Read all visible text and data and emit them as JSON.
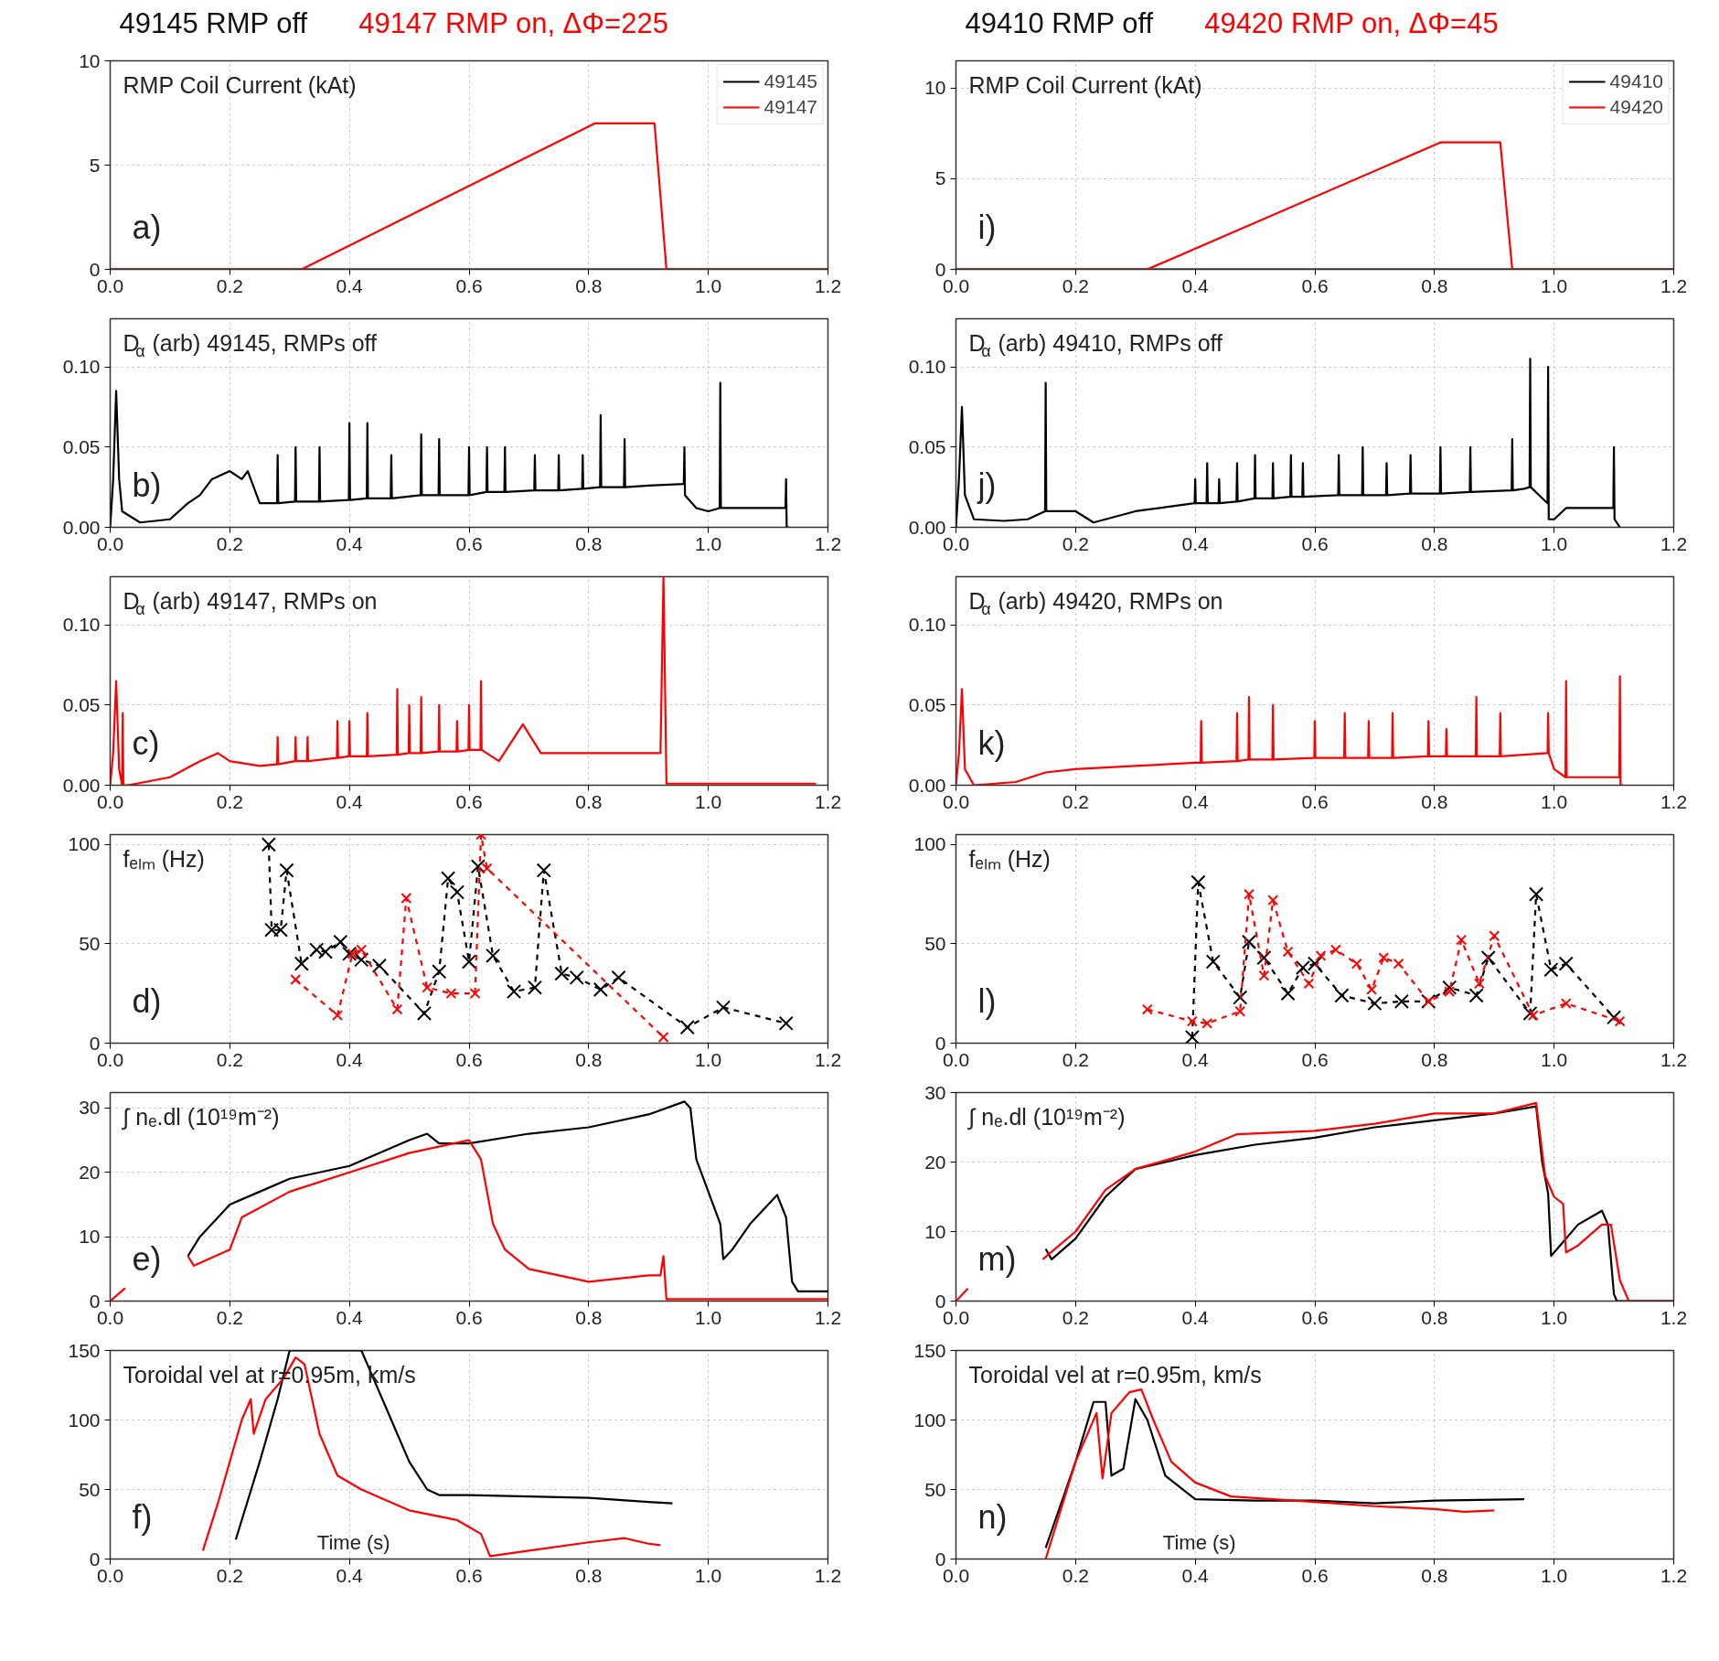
{
  "chart_data": [
    {
      "type": "line",
      "title": "49145 RMP off",
      "subtitle": "49147 RMP on, ΔΦ=225",
      "annotations": [
        "RMP Coil Current (kAt)",
        "a)"
      ],
      "xlim": [
        0,
        1.2
      ],
      "xticks": [
        {
          "value": 0,
          "label": "0.0"
        },
        {
          "value": 0.2,
          "label": "0.2"
        },
        {
          "value": 0.4,
          "label": "0.4"
        },
        {
          "value": 0.6,
          "label": "0.6"
        },
        {
          "value": 0.8,
          "label": "0.8"
        },
        {
          "value": 1.0,
          "label": "1.0"
        },
        {
          "value": 1.2,
          "label": "1.2"
        }
      ],
      "ylim": [
        0,
        10
      ],
      "yticks": [
        0,
        5,
        10
      ],
      "grid": true,
      "legend": "top right",
      "series": [
        {
          "name": "49145",
          "color": "#000000",
          "x": [
            0,
            1.2
          ],
          "values": [
            0,
            0
          ]
        },
        {
          "name": "49147",
          "color": "#ff0000",
          "x": [
            0,
            0.32,
            0.81,
            0.91,
            0.93,
            1.2
          ],
          "values": [
            0,
            0,
            7,
            7,
            0,
            0
          ]
        }
      ]
    },
    {
      "type": "line",
      "title": "49410 RMP off",
      "subtitle": "49420 RMP on, ΔΦ=45",
      "annotations": [
        "RMP Coil Current (kAt)",
        "i)"
      ],
      "xlim": [
        0,
        1.2
      ],
      "xticks": [
        {
          "value": 0,
          "label": "0.0"
        },
        {
          "value": 0.2,
          "label": "0.2"
        },
        {
          "value": 0.4,
          "label": "0.4"
        },
        {
          "value": 0.6,
          "label": "0.6"
        },
        {
          "value": 0.8,
          "label": "0.8"
        },
        {
          "value": 1.0,
          "label": "1.0"
        },
        {
          "value": 1.2,
          "label": "1.2"
        }
      ],
      "ylim": [
        0,
        11.5
      ],
      "yticks": [
        0,
        5,
        10
      ],
      "grid": true,
      "legend": "top right",
      "series": [
        {
          "name": "49410",
          "color": "#000000",
          "x": [
            0,
            1.2
          ],
          "values": [
            0,
            0
          ]
        },
        {
          "name": "49420",
          "color": "#ff0000",
          "x": [
            0,
            0.32,
            0.81,
            0.91,
            0.93,
            1.2
          ],
          "values": [
            0,
            0,
            7,
            7,
            0,
            0
          ]
        }
      ]
    },
    {
      "type": "line",
      "annotations": [
        "D$_{α}$ (arb) 49145, RMPs off",
        "b)"
      ],
      "xlim": [
        0,
        1.2
      ],
      "xticks": [
        {
          "value": 0,
          "label": "0.0"
        },
        {
          "value": 0.2,
          "label": "0.2"
        },
        {
          "value": 0.4,
          "label": "0.4"
        },
        {
          "value": 0.6,
          "label": "0.6"
        },
        {
          "value": 0.8,
          "label": "0.8"
        },
        {
          "value": 1.0,
          "label": "1.0"
        },
        {
          "value": 1.2,
          "label": "1.2"
        }
      ],
      "ylim": [
        0,
        0.13
      ],
      "yticks": [
        {
          "value": 0,
          "label": "0.00"
        },
        {
          "value": 0.05,
          "label": "0.05"
        },
        {
          "value": 0.1,
          "label": "0.10"
        }
      ],
      "grid": true,
      "series": [
        {
          "color": "#000000",
          "x": [
            0,
            0.005,
            0.01,
            0.015,
            0.02,
            0.05,
            0.1,
            0.13,
            0.15,
            0.17,
            0.2,
            0.22,
            0.23,
            0.25,
            0.279,
            0.28,
            0.281,
            0.309,
            0.31,
            0.311,
            0.349,
            0.35,
            0.351,
            0.399,
            0.4,
            0.401,
            0.429,
            0.43,
            0.431,
            0.469,
            0.47,
            0.471,
            0.519,
            0.52,
            0.521,
            0.549,
            0.55,
            0.551,
            0.599,
            0.6,
            0.601,
            0.629,
            0.63,
            0.631,
            0.659,
            0.66,
            0.661,
            0.709,
            0.71,
            0.711,
            0.749,
            0.75,
            0.751,
            0.789,
            0.79,
            0.791,
            0.819,
            0.82,
            0.821,
            0.859,
            0.86,
            0.861,
            0.9,
            0.959,
            0.96,
            0.961,
            0.98,
            1.0,
            1.019,
            1.02,
            1.021,
            1.05,
            1.1,
            1.12,
            1.129,
            1.13,
            1.131,
            1.135
          ],
          "values": [
            0,
            0.03,
            0.085,
            0.03,
            0.01,
            0.003,
            0.005,
            0.015,
            0.02,
            0.03,
            0.035,
            0.03,
            0.035,
            0.015,
            0.015,
            0.045,
            0.015,
            0.016,
            0.05,
            0.016,
            0.016,
            0.05,
            0.016,
            0.017,
            0.065,
            0.017,
            0.018,
            0.065,
            0.018,
            0.018,
            0.045,
            0.018,
            0.02,
            0.058,
            0.02,
            0.02,
            0.055,
            0.02,
            0.02,
            0.05,
            0.02,
            0.022,
            0.05,
            0.022,
            0.022,
            0.05,
            0.022,
            0.023,
            0.045,
            0.023,
            0.023,
            0.045,
            0.023,
            0.024,
            0.045,
            0.024,
            0.025,
            0.07,
            0.025,
            0.025,
            0.055,
            0.025,
            0.026,
            0.027,
            0.05,
            0.02,
            0.012,
            0.01,
            0.012,
            0.09,
            0.012,
            0.012,
            0.012,
            0.012,
            0.012,
            0.03,
            0.0,
            0
          ]
        }
      ]
    },
    {
      "type": "line",
      "annotations": [
        "D$_{α}$ (arb) 49410, RMPs off",
        "j)"
      ],
      "xlim": [
        0,
        1.2
      ],
      "xticks": [
        {
          "value": 0,
          "label": "0.0"
        },
        {
          "value": 0.2,
          "label": "0.2"
        },
        {
          "value": 0.4,
          "label": "0.4"
        },
        {
          "value": 0.6,
          "label": "0.6"
        },
        {
          "value": 0.8,
          "label": "0.8"
        },
        {
          "value": 1.0,
          "label": "1.0"
        },
        {
          "value": 1.2,
          "label": "1.2"
        }
      ],
      "ylim": [
        0,
        0.13
      ],
      "yticks": [
        {
          "value": 0,
          "label": "0.00"
        },
        {
          "value": 0.05,
          "label": "0.05"
        },
        {
          "value": 0.1,
          "label": "0.10"
        }
      ],
      "grid": true,
      "series": [
        {
          "color": "#000000",
          "x": [
            0,
            0.005,
            0.01,
            0.015,
            0.03,
            0.08,
            0.12,
            0.149,
            0.15,
            0.151,
            0.2,
            0.23,
            0.3,
            0.399,
            0.4,
            0.401,
            0.419,
            0.42,
            0.421,
            0.439,
            0.44,
            0.441,
            0.469,
            0.47,
            0.471,
            0.499,
            0.5,
            0.501,
            0.529,
            0.53,
            0.531,
            0.559,
            0.56,
            0.561,
            0.579,
            0.58,
            0.581,
            0.639,
            0.64,
            0.641,
            0.679,
            0.68,
            0.681,
            0.719,
            0.72,
            0.721,
            0.759,
            0.76,
            0.761,
            0.809,
            0.81,
            0.811,
            0.859,
            0.86,
            0.861,
            0.929,
            0.93,
            0.931,
            0.95,
            0.959,
            0.96,
            0.961,
            0.975,
            0.989,
            0.99,
            0.991,
            1.0,
            1.02,
            1.08,
            1.099,
            1.1,
            1.101,
            1.11
          ],
          "values": [
            0,
            0.03,
            0.075,
            0.02,
            0.005,
            0.004,
            0.005,
            0.01,
            0.09,
            0.01,
            0.01,
            0.003,
            0.01,
            0.015,
            0.03,
            0.015,
            0.015,
            0.04,
            0.015,
            0.015,
            0.03,
            0.015,
            0.016,
            0.04,
            0.016,
            0.018,
            0.045,
            0.018,
            0.018,
            0.04,
            0.018,
            0.019,
            0.045,
            0.019,
            0.019,
            0.04,
            0.019,
            0.02,
            0.045,
            0.02,
            0.02,
            0.05,
            0.02,
            0.02,
            0.04,
            0.02,
            0.021,
            0.045,
            0.021,
            0.021,
            0.05,
            0.021,
            0.022,
            0.05,
            0.022,
            0.023,
            0.055,
            0.023,
            0.024,
            0.025,
            0.105,
            0.025,
            0.02,
            0.015,
            0.1,
            0.005,
            0.005,
            0.012,
            0.012,
            0.012,
            0.05,
            0.005,
            0
          ]
        }
      ]
    },
    {
      "type": "line",
      "annotations": [
        "D$_{α}$ (arb) 49147, RMPs on",
        "c)"
      ],
      "xlim": [
        0,
        1.2
      ],
      "xticks": [
        {
          "value": 0,
          "label": "0.0"
        },
        {
          "value": 0.2,
          "label": "0.2"
        },
        {
          "value": 0.4,
          "label": "0.4"
        },
        {
          "value": 0.6,
          "label": "0.6"
        },
        {
          "value": 0.8,
          "label": "0.8"
        },
        {
          "value": 1.0,
          "label": "1.0"
        },
        {
          "value": 1.2,
          "label": "1.2"
        }
      ],
      "ylim": [
        0,
        0.13
      ],
      "yticks": [
        {
          "value": 0,
          "label": "0.00"
        },
        {
          "value": 0.05,
          "label": "0.05"
        },
        {
          "value": 0.1,
          "label": "0.10"
        }
      ],
      "grid": true,
      "series": [
        {
          "color": "#ff0000",
          "x": [
            0,
            0.005,
            0.01,
            0.015,
            0.02,
            0.021,
            0.022,
            0.03,
            0.1,
            0.15,
            0.18,
            0.2,
            0.25,
            0.279,
            0.28,
            0.281,
            0.309,
            0.31,
            0.311,
            0.329,
            0.33,
            0.331,
            0.379,
            0.38,
            0.381,
            0.399,
            0.4,
            0.401,
            0.429,
            0.43,
            0.431,
            0.479,
            0.48,
            0.481,
            0.499,
            0.5,
            0.501,
            0.519,
            0.52,
            0.521,
            0.549,
            0.55,
            0.551,
            0.579,
            0.58,
            0.581,
            0.599,
            0.6,
            0.601,
            0.619,
            0.62,
            0.621,
            0.65,
            0.69,
            0.72,
            0.8,
            0.92,
            0.925,
            0.93,
            1.18
          ],
          "values": [
            0,
            0.02,
            0.065,
            0.01,
            0.0,
            0.045,
            0.0,
            0.0,
            0.005,
            0.015,
            0.02,
            0.015,
            0.012,
            0.013,
            0.03,
            0.013,
            0.015,
            0.03,
            0.015,
            0.015,
            0.03,
            0.015,
            0.017,
            0.04,
            0.017,
            0.018,
            0.04,
            0.018,
            0.018,
            0.045,
            0.018,
            0.019,
            0.06,
            0.019,
            0.02,
            0.05,
            0.02,
            0.02,
            0.055,
            0.02,
            0.021,
            0.05,
            0.021,
            0.021,
            0.04,
            0.021,
            0.022,
            0.05,
            0.022,
            0.022,
            0.065,
            0.022,
            0.015,
            0.038,
            0.02,
            0.02,
            0.02,
            0.13,
            0.001,
            0.001
          ]
        }
      ]
    },
    {
      "type": "line",
      "annotations": [
        "D$_{α}$ (arb) 49420, RMPs on",
        "k)"
      ],
      "xlim": [
        0,
        1.2
      ],
      "xticks": [
        {
          "value": 0,
          "label": "0.0"
        },
        {
          "value": 0.2,
          "label": "0.2"
        },
        {
          "value": 0.4,
          "label": "0.4"
        },
        {
          "value": 0.6,
          "label": "0.6"
        },
        {
          "value": 0.8,
          "label": "0.8"
        },
        {
          "value": 1.0,
          "label": "1.0"
        },
        {
          "value": 1.2,
          "label": "1.2"
        }
      ],
      "ylim": [
        0,
        0.13
      ],
      "yticks": [
        {
          "value": 0,
          "label": "0.00"
        },
        {
          "value": 0.05,
          "label": "0.05"
        },
        {
          "value": 0.1,
          "label": "0.10"
        }
      ],
      "grid": true,
      "series": [
        {
          "color": "#ff0000",
          "x": [
            0,
            0.005,
            0.01,
            0.015,
            0.03,
            0.1,
            0.15,
            0.2,
            0.3,
            0.4,
            0.409,
            0.41,
            0.411,
            0.469,
            0.47,
            0.471,
            0.489,
            0.49,
            0.491,
            0.529,
            0.53,
            0.531,
            0.599,
            0.6,
            0.601,
            0.649,
            0.65,
            0.651,
            0.689,
            0.69,
            0.691,
            0.729,
            0.73,
            0.731,
            0.789,
            0.79,
            0.791,
            0.819,
            0.82,
            0.821,
            0.869,
            0.87,
            0.871,
            0.909,
            0.91,
            0.911,
            0.989,
            0.99,
            0.991,
            1.0,
            1.019,
            1.02,
            1.021,
            1.1,
            1.109,
            1.11,
            1.111,
            1.115
          ],
          "values": [
            0,
            0.02,
            0.06,
            0.01,
            0.0,
            0.002,
            0.008,
            0.01,
            0.012,
            0.014,
            0.014,
            0.04,
            0.014,
            0.015,
            0.045,
            0.015,
            0.016,
            0.055,
            0.016,
            0.016,
            0.05,
            0.016,
            0.017,
            0.04,
            0.017,
            0.017,
            0.045,
            0.017,
            0.017,
            0.04,
            0.017,
            0.017,
            0.045,
            0.017,
            0.018,
            0.04,
            0.018,
            0.018,
            0.035,
            0.018,
            0.018,
            0.055,
            0.018,
            0.018,
            0.045,
            0.018,
            0.02,
            0.045,
            0.02,
            0.01,
            0.005,
            0.065,
            0.005,
            0.005,
            0.005,
            0.068,
            0.0,
            0
          ]
        }
      ]
    },
    {
      "type": "line",
      "annotations": [
        "fₑₗₘ (Hz)",
        "d)"
      ],
      "xlim": [
        0,
        1.2
      ],
      "xticks": [
        {
          "value": 0,
          "label": "0.0"
        },
        {
          "value": 0.2,
          "label": "0.2"
        },
        {
          "value": 0.4,
          "label": "0.4"
        },
        {
          "value": 0.6,
          "label": "0.6"
        },
        {
          "value": 0.8,
          "label": "0.8"
        },
        {
          "value": 1.0,
          "label": "1.0"
        },
        {
          "value": 1.2,
          "label": "1.2"
        }
      ],
      "ylim": [
        0,
        105
      ],
      "yticks": [
        0,
        50,
        100
      ],
      "grid": true,
      "marker": "cross",
      "line_style": "dashed",
      "series": [
        {
          "color": "#000000",
          "x": [
            0.265,
            0.27,
            0.285,
            0.295,
            0.32,
            0.345,
            0.36,
            0.385,
            0.4,
            0.42,
            0.45,
            0.525,
            0.55,
            0.565,
            0.58,
            0.6,
            0.615,
            0.64,
            0.675,
            0.71,
            0.725,
            0.755,
            0.78,
            0.82,
            0.85,
            0.965,
            1.025,
            1.13
          ],
          "values": [
            100,
            57,
            57,
            87,
            40,
            47,
            46,
            51,
            45,
            42,
            39,
            15,
            36,
            83,
            76,
            41,
            89,
            44,
            26,
            28,
            87,
            35,
            33,
            27,
            33,
            8,
            18,
            10
          ]
        },
        {
          "color": "#ff0000",
          "x": [
            0.31,
            0.38,
            0.405,
            0.42,
            0.48,
            0.495,
            0.53,
            0.57,
            0.61,
            0.62,
            0.63,
            0.925
          ],
          "values": [
            32,
            14,
            45,
            47,
            17,
            73,
            28,
            25,
            25,
            105,
            88,
            3
          ]
        }
      ]
    },
    {
      "type": "line",
      "annotations": [
        "fₑₗₘ (Hz)",
        "l)"
      ],
      "xlim": [
        0,
        1.2
      ],
      "xticks": [
        {
          "value": 0,
          "label": "0.0"
        },
        {
          "value": 0.2,
          "label": "0.2"
        },
        {
          "value": 0.4,
          "label": "0.4"
        },
        {
          "value": 0.6,
          "label": "0.6"
        },
        {
          "value": 0.8,
          "label": "0.8"
        },
        {
          "value": 1.0,
          "label": "1.0"
        },
        {
          "value": 1.2,
          "label": "1.2"
        }
      ],
      "ylim": [
        0,
        105
      ],
      "yticks": [
        0,
        50,
        100
      ],
      "grid": true,
      "marker": "cross",
      "line_style": "dashed",
      "series": [
        {
          "color": "#000000",
          "x": [
            0.395,
            0.405,
            0.43,
            0.475,
            0.49,
            0.515,
            0.555,
            0.58,
            0.6,
            0.645,
            0.7,
            0.745,
            0.79,
            0.825,
            0.87,
            0.89,
            0.96,
            0.97,
            0.995,
            1.02,
            1.1
          ],
          "values": [
            3,
            81,
            41,
            23,
            51,
            43,
            25,
            38,
            40,
            24,
            20,
            21,
            21,
            28,
            24,
            43,
            15,
            75,
            37,
            40,
            13
          ]
        },
        {
          "color": "#ff0000",
          "x": [
            0.32,
            0.395,
            0.42,
            0.475,
            0.49,
            0.515,
            0.53,
            0.555,
            0.59,
            0.61,
            0.635,
            0.67,
            0.695,
            0.715,
            0.74,
            0.79,
            0.825,
            0.845,
            0.875,
            0.9,
            0.965,
            1.02,
            1.11
          ],
          "values": [
            17,
            11,
            10,
            16,
            75,
            34,
            72,
            46,
            30,
            44,
            47,
            40,
            27,
            43,
            40,
            21,
            26,
            52,
            30,
            54,
            14,
            20,
            11
          ]
        }
      ]
    },
    {
      "type": "line",
      "annotations": [
        "∫ nₑ.dl (10¹⁹m⁻²)",
        "e)"
      ],
      "xlim": [
        0,
        1.2
      ],
      "xticks": [
        {
          "value": 0,
          "label": "0.0"
        },
        {
          "value": 0.2,
          "label": "0.2"
        },
        {
          "value": 0.4,
          "label": "0.4"
        },
        {
          "value": 0.6,
          "label": "0.6"
        },
        {
          "value": 0.8,
          "label": "0.8"
        },
        {
          "value": 1.0,
          "label": "1.0"
        },
        {
          "value": 1.2,
          "label": "1.2"
        }
      ],
      "ylim": [
        0,
        32.4
      ],
      "yticks": [
        0,
        10,
        20,
        30
      ],
      "grid": true,
      "series": [
        {
          "color": "#000000",
          "x": [
            0.13,
            0.15,
            0.2,
            0.25,
            0.3,
            0.4,
            0.5,
            0.53,
            0.55,
            0.6,
            0.7,
            0.8,
            0.9,
            0.96,
            0.97,
            0.98,
            1.0,
            1.02,
            1.025,
            1.04,
            1.07,
            1.1,
            1.115,
            1.13,
            1.14,
            1.15,
            1.2
          ],
          "values": [
            7,
            10,
            15,
            17,
            19,
            21,
            25,
            26,
            24.5,
            24.5,
            26,
            27,
            29,
            31,
            30,
            22,
            17,
            12,
            6.5,
            8,
            12,
            15,
            16.5,
            13,
            3,
            1.5,
            1.5
          ]
        },
        {
          "color": "#ff0000",
          "x": [
            0,
            0.025,
            0.08,
            0.13,
            0.14,
            0.2,
            0.22,
            0.3,
            0.4,
            0.5,
            0.6,
            0.62,
            0.64,
            0.66,
            0.7,
            0.8,
            0.9,
            0.92,
            0.925,
            0.93,
            1.2
          ],
          "values": [
            0,
            2,
            null,
            7,
            5.5,
            8,
            13,
            17,
            20,
            23,
            25,
            22,
            12,
            8,
            5,
            3,
            4,
            4,
            7,
            0.3,
            0.3
          ]
        }
      ]
    },
    {
      "type": "line",
      "annotations": [
        "∫ nₑ.dl (10¹⁹m⁻²)",
        "m)"
      ],
      "xlim": [
        0,
        1.2
      ],
      "xticks": [
        {
          "value": 0,
          "label": "0.0"
        },
        {
          "value": 0.2,
          "label": "0.2"
        },
        {
          "value": 0.4,
          "label": "0.4"
        },
        {
          "value": 0.6,
          "label": "0.6"
        },
        {
          "value": 0.8,
          "label": "0.8"
        },
        {
          "value": 1.0,
          "label": "1.0"
        },
        {
          "value": 1.2,
          "label": "1.2"
        }
      ],
      "ylim": [
        0,
        30
      ],
      "yticks": [
        0,
        10,
        20,
        30
      ],
      "grid": true,
      "series": [
        {
          "color": "#000000",
          "x": [
            0.15,
            0.16,
            0.2,
            0.25,
            0.3,
            0.4,
            0.5,
            0.6,
            0.7,
            0.8,
            0.9,
            0.97,
            0.98,
            0.99,
            0.995,
            1.01,
            1.04,
            1.08,
            1.09,
            1.1,
            1.105,
            1.2
          ],
          "values": [
            7.5,
            6,
            9,
            15,
            19,
            21,
            22.5,
            23.5,
            25,
            26,
            27,
            28,
            20,
            15.5,
            6.5,
            8,
            11,
            13,
            11,
            1,
            0,
            0
          ]
        },
        {
          "color": "#ff0000",
          "x": [
            0,
            0.02,
            0.08,
            0.145,
            0.2,
            0.25,
            0.3,
            0.4,
            0.47,
            0.6,
            0.7,
            0.8,
            0.9,
            0.97,
            0.985,
            1.0,
            1.015,
            1.02,
            1.04,
            1.08,
            1.095,
            1.11,
            1.125,
            1.2
          ],
          "values": [
            0,
            1.8,
            null,
            6,
            10,
            16,
            19,
            21.5,
            24,
            24.5,
            25.5,
            27,
            27,
            28.5,
            18,
            15,
            14,
            7,
            8,
            11,
            11,
            3,
            0,
            0
          ]
        }
      ]
    },
    {
      "type": "line",
      "xlabel": "Time (s)",
      "annotations": [
        "Toroidal vel at r=0.95m, km/s",
        "f)"
      ],
      "xlim": [
        0,
        1.2
      ],
      "xticks": [
        {
          "value": 0,
          "label": "0.0"
        },
        {
          "value": 0.2,
          "label": "0.2"
        },
        {
          "value": 0.4,
          "label": "0.4"
        },
        {
          "value": 0.6,
          "label": "0.6"
        },
        {
          "value": 0.8,
          "label": "0.8"
        },
        {
          "value": 1.0,
          "label": "1.0"
        },
        {
          "value": 1.2,
          "label": "1.2"
        }
      ],
      "ylim": [
        0,
        150
      ],
      "yticks": [
        0,
        50,
        100,
        150
      ],
      "grid": true,
      "series": [
        {
          "color": "#000000",
          "x": [
            0.21,
            0.25,
            0.28,
            0.3,
            0.42,
            0.46,
            0.5,
            0.53,
            0.55,
            0.6,
            0.7,
            0.8,
            0.9,
            0.94
          ],
          "values": [
            14,
            70,
            115,
            150,
            150,
            110,
            70,
            50,
            46,
            46,
            45,
            44,
            41,
            40
          ]
        },
        {
          "color": "#ff0000",
          "x": [
            0.155,
            0.18,
            0.22,
            0.235,
            0.24,
            0.26,
            0.29,
            0.31,
            0.325,
            0.35,
            0.38,
            0.42,
            0.5,
            0.58,
            0.62,
            0.635,
            0.7,
            0.8,
            0.86,
            0.9,
            0.92
          ],
          "values": [
            6,
            40,
            100,
            115,
            90,
            115,
            130,
            145,
            140,
            90,
            60,
            50,
            35,
            28,
            18,
            2,
            6,
            12,
            15,
            11,
            10
          ]
        }
      ]
    },
    {
      "type": "line",
      "xlabel": "Time (s)",
      "annotations": [
        "Toroidal vel at r=0.95m, km/s",
        "n)"
      ],
      "xlim": [
        0,
        1.2
      ],
      "xticks": [
        {
          "value": 0,
          "label": "0.0"
        },
        {
          "value": 0.2,
          "label": "0.2"
        },
        {
          "value": 0.4,
          "label": "0.4"
        },
        {
          "value": 0.6,
          "label": "0.6"
        },
        {
          "value": 0.8,
          "label": "0.8"
        },
        {
          "value": 1.0,
          "label": "1.0"
        },
        {
          "value": 1.2,
          "label": "1.2"
        }
      ],
      "ylim": [
        0,
        150
      ],
      "yticks": [
        0,
        50,
        100,
        150
      ],
      "grid": true,
      "series": [
        {
          "color": "#000000",
          "x": [
            0.15,
            0.2,
            0.23,
            0.25,
            0.26,
            0.28,
            0.3,
            0.32,
            0.35,
            0.4,
            0.5,
            0.6,
            0.7,
            0.8,
            0.95
          ],
          "values": [
            8,
            70,
            113,
            113,
            60,
            65,
            115,
            100,
            60,
            43,
            42,
            42,
            40,
            42,
            43
          ]
        },
        {
          "color": "#ff0000",
          "x": [
            0.15,
            0.2,
            0.235,
            0.245,
            0.26,
            0.29,
            0.31,
            0.33,
            0.36,
            0.4,
            0.46,
            0.6,
            0.7,
            0.8,
            0.85,
            0.9
          ],
          "values": [
            0,
            70,
            105,
            58,
            105,
            120,
            122,
            100,
            70,
            55,
            45,
            41,
            38,
            36,
            34,
            35
          ]
        }
      ]
    }
  ]
}
